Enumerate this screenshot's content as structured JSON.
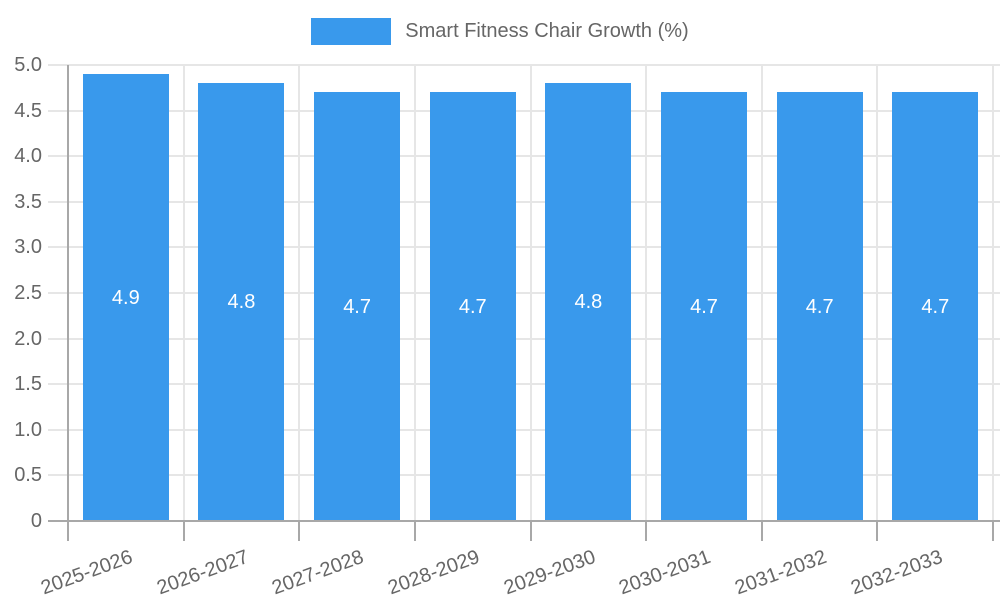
{
  "legend": {
    "position": "top"
  },
  "colors": {
    "bar": "#3999ec",
    "grid": "#e6e6e6",
    "axis": "#a8a8a8",
    "tick_text": "#666666",
    "value_text": "#ffffff",
    "background": "#ffffff"
  },
  "chart_data": {
    "type": "bar",
    "title": "",
    "series_name": "Smart Fitness Chair Growth (%)",
    "categories": [
      "2025-2026",
      "2026-2027",
      "2027-2028",
      "2028-2029",
      "2029-2030",
      "2030-2031",
      "2031-2032",
      "2032-2033"
    ],
    "values": [
      4.9,
      4.8,
      4.7,
      4.7,
      4.8,
      4.7,
      4.7,
      4.7
    ],
    "value_labels": [
      "4.9",
      "4.8",
      "4.7",
      "4.7",
      "4.8",
      "4.7",
      "4.7",
      "4.7"
    ],
    "xlabel": "",
    "ylabel": "",
    "ylim": [
      0,
      5
    ],
    "ytick_step": 0.5,
    "ytick_labels": [
      "0",
      "0.5",
      "1.0",
      "1.5",
      "2.0",
      "2.5",
      "3.0",
      "3.5",
      "4.0",
      "4.5",
      "5.0"
    ],
    "grid": true,
    "legend_position": "top",
    "bar_label_position": "center",
    "x_tick_rotation_deg": -20
  }
}
